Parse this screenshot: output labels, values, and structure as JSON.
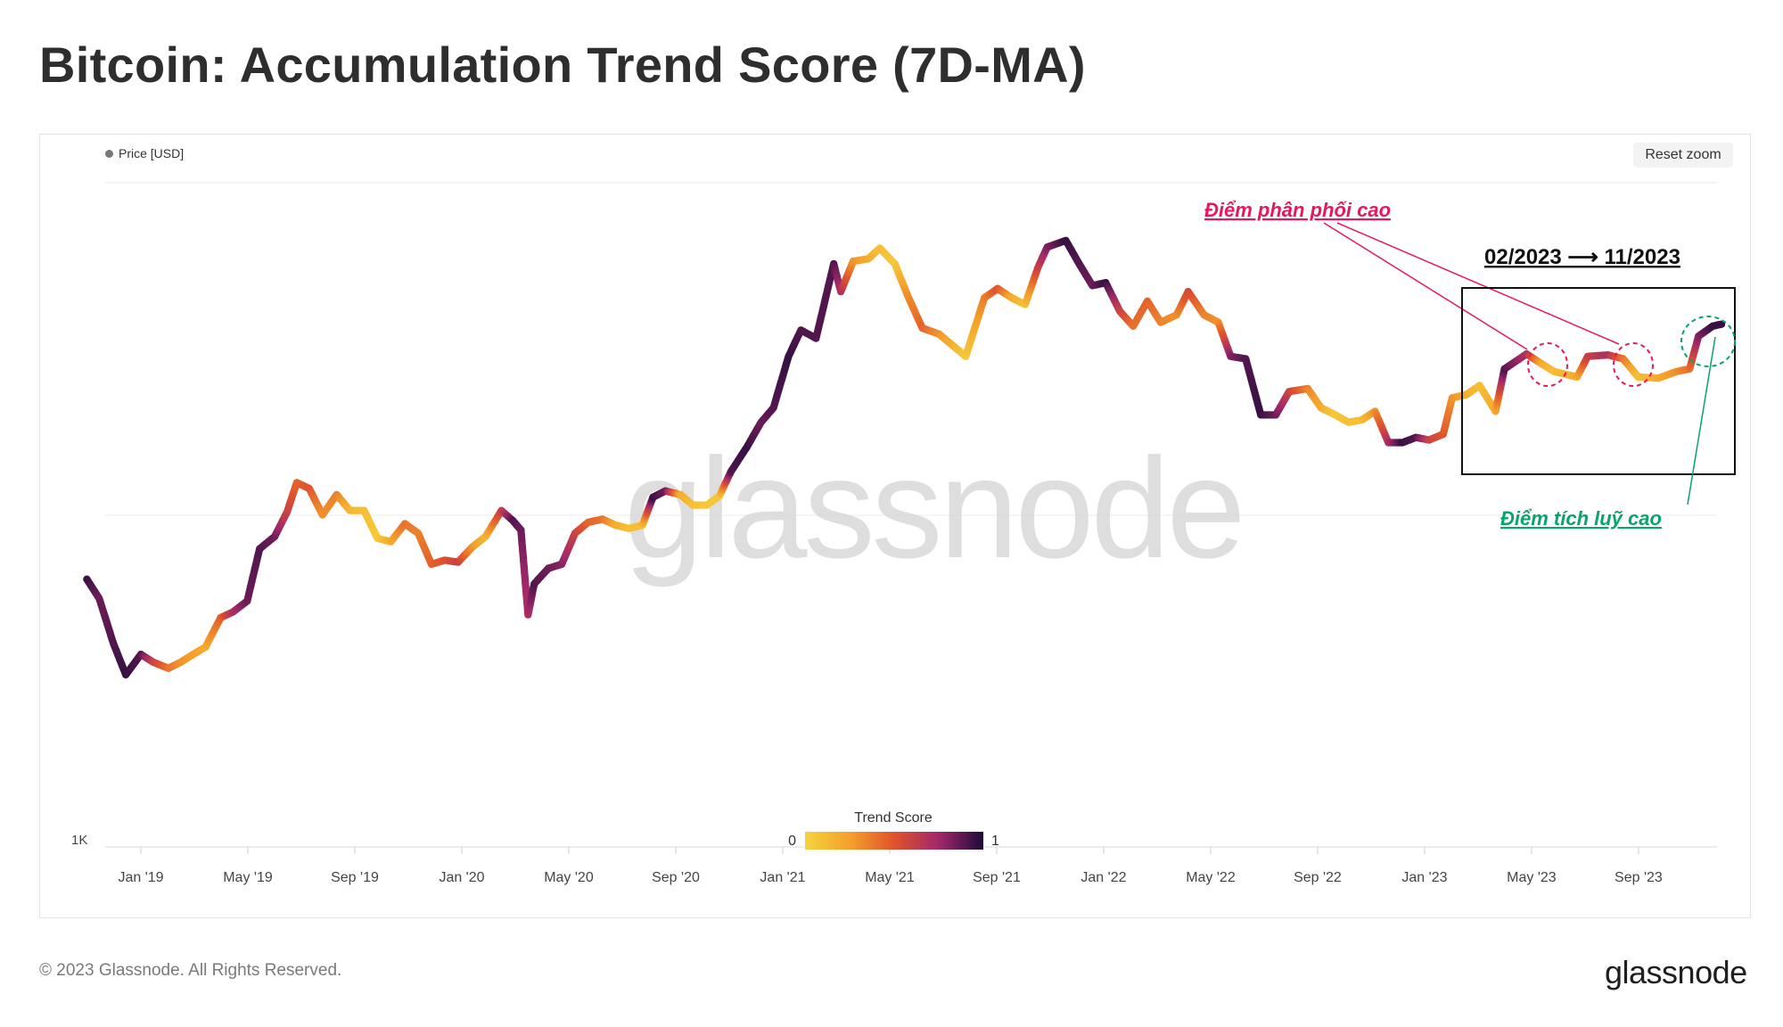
{
  "title": "Bitcoin: Accumulation Trend Score (7D-MA)",
  "legend_label": "Price [USD]",
  "reset_zoom_label": "Reset zoom",
  "watermark": "glassnode",
  "colorbar": {
    "title": "Trend Score",
    "min_label": "0",
    "max_label": "1"
  },
  "annotations": {
    "distribution": "Điểm phân phối cao",
    "accumulation": "Điểm tích luỹ cao",
    "period": "02/2023 ⟶ 11/2023"
  },
  "footer": {
    "copyright": "© 2023 Glassnode. All Rights Reserved.",
    "brand": "glassnode"
  },
  "colors": {
    "score_low": "#f6d23c",
    "score_mid_low": "#f4a12b",
    "score_mid": "#e0522d",
    "score_mid_high": "#a0286a",
    "score_high": "#1d0b3a",
    "distribution_annotation": "#e8175d",
    "accumulation_annotation": "#0aa36b"
  },
  "chart_data": {
    "type": "scatter",
    "description_series": "Price [USD] colored by Trend Score",
    "y_scale": "log",
    "y_tick_labels": [
      "1K"
    ],
    "x_tick_labels": [
      "Jan '19",
      "May '19",
      "Sep '19",
      "Jan '20",
      "May '20",
      "Sep '20",
      "Jan '21",
      "May '21",
      "Sep '21",
      "Jan '22",
      "May '22",
      "Sep '22",
      "Jan '23",
      "May '23",
      "Sep '23"
    ],
    "series": [
      {
        "name": "Price [USD]",
        "points": [
          [
            "2018-11-01",
            6400,
            0.95
          ],
          [
            "2018-11-15",
            5600,
            0.85
          ],
          [
            "2018-12-01",
            4100,
            0.9
          ],
          [
            "2018-12-15",
            3300,
            0.95
          ],
          [
            "2019-01-01",
            3800,
            0.9
          ],
          [
            "2019-01-15",
            3600,
            0.6
          ],
          [
            "2019-02-01",
            3450,
            0.4
          ],
          [
            "2019-02-15",
            3600,
            0.3
          ],
          [
            "2019-03-01",
            3800,
            0.25
          ],
          [
            "2019-03-15",
            4000,
            0.2
          ],
          [
            "2019-04-01",
            4900,
            0.45
          ],
          [
            "2019-04-15",
            5100,
            0.7
          ],
          [
            "2019-05-01",
            5500,
            0.85
          ],
          [
            "2019-05-15",
            7900,
            0.9
          ],
          [
            "2019-06-01",
            8600,
            0.85
          ],
          [
            "2019-06-15",
            10200,
            0.6
          ],
          [
            "2019-06-26",
            12500,
            0.45
          ],
          [
            "2019-07-10",
            12000,
            0.5
          ],
          [
            "2019-07-25",
            10000,
            0.3
          ],
          [
            "2019-08-10",
            11500,
            0.35
          ],
          [
            "2019-08-25",
            10300,
            0.15
          ],
          [
            "2019-09-10",
            10300,
            0.1
          ],
          [
            "2019-09-25",
            8500,
            0.05
          ],
          [
            "2019-10-10",
            8300,
            0.2
          ],
          [
            "2019-10-26",
            9400,
            0.4
          ],
          [
            "2019-11-10",
            8800,
            0.35
          ],
          [
            "2019-11-25",
            7100,
            0.45
          ],
          [
            "2019-12-10",
            7300,
            0.5
          ],
          [
            "2019-12-25",
            7200,
            0.6
          ],
          [
            "2020-01-10",
            8000,
            0.3
          ],
          [
            "2020-01-25",
            8600,
            0.15
          ],
          [
            "2020-02-12",
            10300,
            0.6
          ],
          [
            "2020-02-25",
            9600,
            0.9
          ],
          [
            "2020-03-05",
            9000,
            0.85
          ],
          [
            "2020-03-13",
            5000,
            0.7
          ],
          [
            "2020-03-20",
            6200,
            0.9
          ],
          [
            "2020-04-05",
            6900,
            0.85
          ],
          [
            "2020-04-20",
            7100,
            0.8
          ],
          [
            "2020-05-05",
            8800,
            0.6
          ],
          [
            "2020-05-20",
            9500,
            0.45
          ],
          [
            "2020-06-05",
            9700,
            0.4
          ],
          [
            "2020-06-20",
            9300,
            0.2
          ],
          [
            "2020-07-05",
            9100,
            0.1
          ],
          [
            "2020-07-20",
            9300,
            0.1
          ],
          [
            "2020-08-01",
            11300,
            0.95
          ],
          [
            "2020-08-15",
            11800,
            0.85
          ],
          [
            "2020-09-01",
            11500,
            0.2
          ],
          [
            "2020-09-15",
            10700,
            0.1
          ],
          [
            "2020-10-01",
            10700,
            0.05
          ],
          [
            "2020-10-15",
            11400,
            0.05
          ],
          [
            "2020-10-28",
            13500,
            0.9
          ],
          [
            "2020-11-15",
            16000,
            0.95
          ],
          [
            "2020-12-01",
            19000,
            0.85
          ],
          [
            "2020-12-15",
            21000,
            0.9
          ],
          [
            "2021-01-01",
            30000,
            0.95
          ],
          [
            "2021-01-15",
            36000,
            0.9
          ],
          [
            "2021-02-01",
            34000,
            0.9
          ],
          [
            "2021-02-21",
            57000,
            0.9
          ],
          [
            "2021-03-01",
            47000,
            0.7
          ],
          [
            "2021-03-15",
            58000,
            0.3
          ],
          [
            "2021-04-01",
            59000,
            0.2
          ],
          [
            "2021-04-14",
            63500,
            0.1
          ],
          [
            "2021-05-01",
            57000,
            0.05
          ],
          [
            "2021-05-15",
            46000,
            0.3
          ],
          [
            "2021-06-01",
            36500,
            0.45
          ],
          [
            "2021-06-20",
            35000,
            0.3
          ],
          [
            "2021-07-20",
            30000,
            0.05
          ],
          [
            "2021-08-10",
            45000,
            0.35
          ],
          [
            "2021-08-25",
            48000,
            0.5
          ],
          [
            "2021-09-10",
            45000,
            0.2
          ],
          [
            "2021-09-25",
            43000,
            0.1
          ],
          [
            "2021-10-10",
            56000,
            0.6
          ],
          [
            "2021-10-20",
            64000,
            0.8
          ],
          [
            "2021-11-10",
            67000,
            0.95
          ],
          [
            "2021-11-25",
            57000,
            0.9
          ],
          [
            "2021-12-10",
            49000,
            0.85
          ],
          [
            "2021-12-25",
            50000,
            0.95
          ],
          [
            "2022-01-10",
            41000,
            0.6
          ],
          [
            "2022-01-25",
            37000,
            0.4
          ],
          [
            "2022-02-10",
            44000,
            0.45
          ],
          [
            "2022-02-25",
            38000,
            0.35
          ],
          [
            "2022-03-15",
            40000,
            0.3
          ],
          [
            "2022-03-28",
            47000,
            0.55
          ],
          [
            "2022-04-15",
            40000,
            0.35
          ],
          [
            "2022-05-01",
            38000,
            0.3
          ],
          [
            "2022-05-15",
            30000,
            0.8
          ],
          [
            "2022-06-01",
            29500,
            0.9
          ],
          [
            "2022-06-18",
            20000,
            0.95
          ],
          [
            "2022-07-05",
            20000,
            0.85
          ],
          [
            "2022-07-20",
            23500,
            0.6
          ],
          [
            "2022-08-10",
            24000,
            0.35
          ],
          [
            "2022-08-25",
            21000,
            0.2
          ],
          [
            "2022-09-10",
            20000,
            0.05
          ],
          [
            "2022-09-25",
            19000,
            0.1
          ],
          [
            "2022-10-10",
            19300,
            0.1
          ],
          [
            "2022-10-25",
            20500,
            0.3
          ],
          [
            "2022-11-09",
            16500,
            0.7
          ],
          [
            "2022-11-25",
            16500,
            0.95
          ],
          [
            "2022-12-10",
            17100,
            0.9
          ],
          [
            "2022-12-25",
            16800,
            0.6
          ],
          [
            "2023-01-10",
            17500,
            0.5
          ],
          [
            "2023-01-20",
            22500,
            0.3
          ],
          [
            "2023-02-05",
            23000,
            0.2
          ],
          [
            "2023-02-20",
            24500,
            0.1
          ],
          [
            "2023-03-10",
            20500,
            0.2
          ],
          [
            "2023-03-20",
            27500,
            0.9
          ],
          [
            "2023-04-14",
            30500,
            0.7
          ],
          [
            "2023-05-01",
            28500,
            0.2
          ],
          [
            "2023-05-15",
            27000,
            0.1
          ],
          [
            "2023-06-10",
            26000,
            0.2
          ],
          [
            "2023-06-22",
            30000,
            0.6
          ],
          [
            "2023-07-15",
            30300,
            0.7
          ],
          [
            "2023-08-01",
            29500,
            0.4
          ],
          [
            "2023-08-18",
            26000,
            0.1
          ],
          [
            "2023-09-10",
            25800,
            0.2
          ],
          [
            "2023-09-30",
            27000,
            0.3
          ],
          [
            "2023-10-15",
            27500,
            0.4
          ],
          [
            "2023-10-25",
            34500,
            0.8
          ],
          [
            "2023-11-10",
            37000,
            0.95
          ],
          [
            "2023-11-20",
            37500,
            0.95
          ]
        ]
      }
    ],
    "color_scale": {
      "title": "Trend Score",
      "min": 0,
      "max": 1
    },
    "grid": true,
    "legend_position": "top-left"
  }
}
